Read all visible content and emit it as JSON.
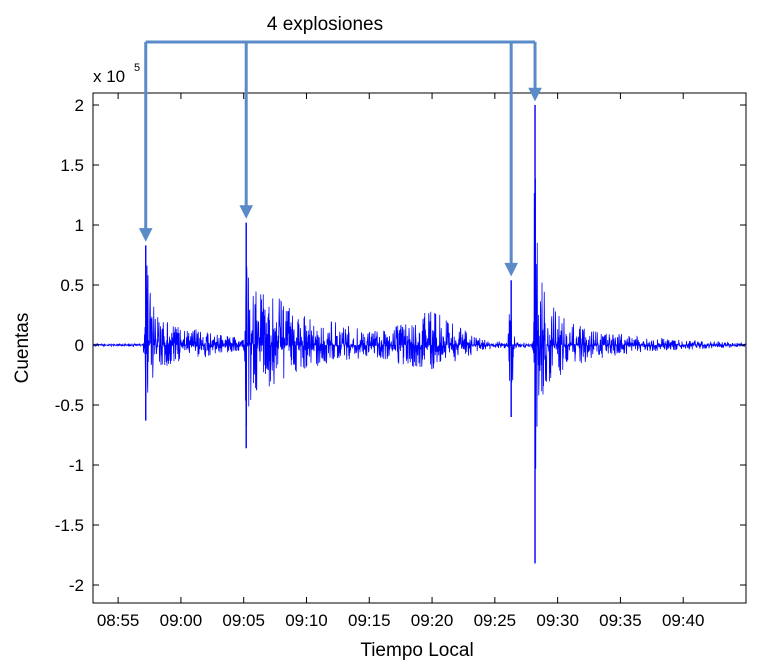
{
  "chart_data": {
    "type": "line",
    "title": "",
    "xlabel": "Tiempo Local",
    "ylabel": "Cuentas",
    "y_multiplier": {
      "base": "x 10",
      "exponent": "5"
    },
    "xlim": [
      "08:53",
      "09:45"
    ],
    "ylim": [
      -2.15,
      2.1
    ],
    "x_ticks": [
      "08:55",
      "09:00",
      "09:05",
      "09:10",
      "09:15",
      "09:20",
      "09:25",
      "09:30",
      "09:35",
      "09:40"
    ],
    "y_ticks": [
      {
        "value": 2,
        "label": "2"
      },
      {
        "value": 1.5,
        "label": "1.5"
      },
      {
        "value": 1,
        "label": "1"
      },
      {
        "value": 0.5,
        "label": "0.5"
      },
      {
        "value": 0,
        "label": "0"
      },
      {
        "value": -0.5,
        "label": "-0.5"
      },
      {
        "value": -1,
        "label": "-1"
      },
      {
        "value": -1.5,
        "label": "-1.5"
      },
      {
        "value": -2,
        "label": "-2"
      }
    ],
    "grid": false,
    "legend": "none",
    "series_color": "#0000ff",
    "series": [
      {
        "envelope": {
          "x": [
            "08:53",
            "08:55",
            "08:57",
            "08:57.2",
            "08:57.5",
            "08:58",
            "08:59",
            "09:00",
            "09:02",
            "09:03",
            "09:04",
            "09:05",
            "09:05.2",
            "09:05.5",
            "09:06",
            "09:07",
            "09:08",
            "09:09",
            "09:10",
            "09:11",
            "09:12",
            "09:13",
            "09:14",
            "09:15",
            "09:16",
            "09:17",
            "09:18",
            "09:19",
            "09:20",
            "09:21",
            "09:22",
            "09:23",
            "09:24",
            "09:25",
            "09:26",
            "09:26.3",
            "09:26.6",
            "09:27",
            "09:28",
            "09:28.2",
            "09:28.5",
            "09:29",
            "09:30",
            "09:31",
            "09:32",
            "09:33",
            "09:34",
            "09:35",
            "09:36",
            "09:37",
            "09:38",
            "09:39",
            "09:40",
            "09:41",
            "09:42",
            "09:43",
            "09:44",
            "09:45"
          ],
          "max": [
            0.01,
            0.01,
            0.01,
            0.83,
            0.5,
            0.3,
            0.2,
            0.16,
            0.12,
            0.1,
            0.08,
            0.05,
            1.02,
            0.73,
            0.45,
            0.4,
            0.4,
            0.32,
            0.25,
            0.22,
            0.2,
            0.18,
            0.16,
            0.12,
            0.12,
            0.15,
            0.2,
            0.25,
            0.3,
            0.22,
            0.17,
            0.1,
            0.05,
            0.03,
            0.03,
            0.54,
            0.03,
            0.02,
            0.02,
            2.0,
            0.6,
            0.45,
            0.3,
            0.2,
            0.15,
            0.12,
            0.1,
            0.1,
            0.08,
            0.07,
            0.06,
            0.05,
            0.05,
            0.04,
            0.03,
            0.03,
            0.02,
            0.02
          ],
          "min": [
            -0.01,
            -0.01,
            -0.01,
            -0.63,
            -0.35,
            -0.25,
            -0.17,
            -0.14,
            -0.1,
            -0.08,
            -0.06,
            -0.05,
            -0.86,
            -0.55,
            -0.4,
            -0.35,
            -0.3,
            -0.25,
            -0.2,
            -0.18,
            -0.15,
            -0.13,
            -0.12,
            -0.1,
            -0.12,
            -0.15,
            -0.18,
            -0.2,
            -0.22,
            -0.18,
            -0.15,
            -0.1,
            -0.05,
            -0.03,
            -0.03,
            -0.6,
            -0.03,
            -0.02,
            -0.02,
            -1.82,
            -0.5,
            -0.4,
            -0.28,
            -0.2,
            -0.15,
            -0.12,
            -0.1,
            -0.08,
            -0.07,
            -0.06,
            -0.05,
            -0.05,
            -0.04,
            -0.04,
            -0.03,
            -0.03,
            -0.02,
            -0.02
          ]
        }
      }
    ],
    "annotations": [
      {
        "text": "4 explosiones",
        "arrow_color": "#5b8ac9",
        "arrows": [
          {
            "x": "08:57.2",
            "y": 0.87
          },
          {
            "x": "09:05.2",
            "y": 1.06
          },
          {
            "x": "09:26.3",
            "y": 0.58
          },
          {
            "x": "09:28.2",
            "y": 2.04
          }
        ]
      }
    ]
  }
}
